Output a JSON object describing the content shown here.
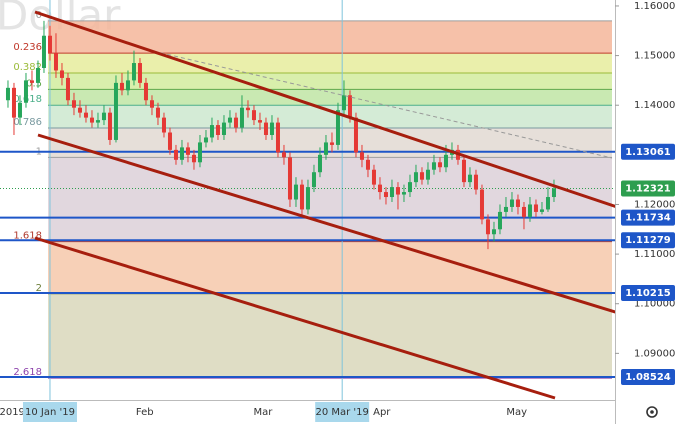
{
  "chart_data": {
    "type": "candlestick",
    "watermark": "Dollar",
    "up_color": "#26a65b",
    "down_color": "#e53935",
    "xlim": [
      -1.33,
      101.17
    ],
    "ylim": [
      1.0806,
      1.1612
    ],
    "xticks": [
      {
        "value": 0.7,
        "label": "2019"
      },
      {
        "value": 7,
        "label": "10 Jan '19",
        "highlight": true
      },
      {
        "value": 22.8,
        "label": "Feb"
      },
      {
        "value": 42.5,
        "label": "Mar"
      },
      {
        "value": 55.7,
        "label": "20 Mar '19",
        "highlight": true
      },
      {
        "value": 62.3,
        "label": "Apr"
      },
      {
        "value": 84.8,
        "label": "May"
      }
    ],
    "yticks": [
      {
        "value": 1.16,
        "label": "1.16000"
      },
      {
        "value": 1.15,
        "label": "1.15000"
      },
      {
        "value": 1.14,
        "label": "1.14000"
      },
      {
        "value": 1.12,
        "label": "1.12000"
      },
      {
        "value": 1.11,
        "label": "1.11000"
      },
      {
        "value": 1.1,
        "label": "1.10000"
      },
      {
        "value": 1.09,
        "label": "1.09000"
      }
    ],
    "fib_levels": [
      {
        "level": 0,
        "price": 1.157,
        "color": "#f4b69a",
        "line": "#9e9e9e"
      },
      {
        "level": 0.236,
        "price": 1.1505,
        "color": "#e6ec9c",
        "line": "#c0392b"
      },
      {
        "level": 0.382,
        "price": 1.1465,
        "color": "#d2ec9e",
        "line": "#9bbb3a"
      },
      {
        "level": 0.5,
        "price": 1.1432,
        "color": "#bfe5a4",
        "line": "#5fa84a"
      },
      {
        "level": 0.618,
        "price": 1.14,
        "color": "#cde8cf",
        "line": "#4caf8a"
      },
      {
        "level": 0.786,
        "price": 1.1354,
        "color": "#e2d9d2",
        "line": "#7a9aa0"
      },
      {
        "level": 1,
        "price": 1.1295,
        "color": "#dcd0d8",
        "line": "#9e9e9e"
      },
      {
        "level": 1.618,
        "price": 1.1125,
        "color": "#f6c8aa",
        "line": "#b03a2e"
      },
      {
        "level": 2,
        "price": 1.102,
        "color": "#d9d7bb",
        "line": "#6e7f3a"
      },
      {
        "level": 2.618,
        "price": 1.085,
        "line": "#8e44ad"
      }
    ],
    "levels": [
      1.13061,
      1.11734,
      1.11279,
      1.10215,
      1.08524
    ],
    "level_color": "#1e56c8",
    "last_price": 1.12321,
    "last_color": "#2e9e4f",
    "open": [
      1.141,
      1.1435,
      1.1375,
      1.1405,
      1.145,
      1.1445,
      1.1475,
      1.154,
      1.1505,
      1.147,
      1.1455,
      1.141,
      1.1395,
      1.1385,
      1.1375,
      1.1365,
      1.137,
      1.1385,
      1.133,
      1.1445,
      1.143,
      1.145,
      1.1485,
      1.1445,
      1.141,
      1.1395,
      1.1375,
      1.1345,
      1.131,
      1.129,
      1.1315,
      1.13,
      1.1285,
      1.1325,
      1.1335,
      1.136,
      1.134,
      1.1365,
      1.1375,
      1.1355,
      1.1395,
      1.139,
      1.137,
      1.1365,
      1.134,
      1.1365,
      1.1305,
      1.1295,
      1.121,
      1.124,
      1.119,
      1.1235,
      1.1265,
      1.13,
      1.1325,
      1.132,
      1.139,
      1.142,
      1.1375,
      1.1305,
      1.129,
      1.127,
      1.124,
      1.1225,
      1.1215,
      1.1235,
      1.122,
      1.1225,
      1.1245,
      1.1265,
      1.125,
      1.127,
      1.1285,
      1.1275,
      1.13,
      1.131,
      1.129,
      1.1245,
      1.126,
      1.123,
      1.117,
      1.114,
      1.115,
      1.1185,
      1.1195,
      1.121,
      1.1195,
      1.1175,
      1.12,
      1.1185,
      1.119,
      1.1215
    ],
    "high": [
      1.145,
      1.1445,
      1.142,
      1.1465,
      1.147,
      1.149,
      1.157,
      1.156,
      1.1545,
      1.1485,
      1.1465,
      1.1425,
      1.141,
      1.14,
      1.139,
      1.1385,
      1.14,
      1.1395,
      1.146,
      1.1465,
      1.147,
      1.151,
      1.1495,
      1.1455,
      1.142,
      1.1405,
      1.1385,
      1.1355,
      1.132,
      1.133,
      1.1325,
      1.131,
      1.134,
      1.135,
      1.1375,
      1.137,
      1.138,
      1.139,
      1.1385,
      1.142,
      1.141,
      1.14,
      1.1385,
      1.1375,
      1.138,
      1.1375,
      1.132,
      1.1305,
      1.1255,
      1.125,
      1.125,
      1.128,
      1.1315,
      1.134,
      1.1345,
      1.1405,
      1.145,
      1.143,
      1.1385,
      1.132,
      1.13,
      1.128,
      1.1255,
      1.1235,
      1.125,
      1.1245,
      1.124,
      1.126,
      1.128,
      1.1275,
      1.1285,
      1.13,
      1.1295,
      1.132,
      1.1325,
      1.132,
      1.13,
      1.1275,
      1.127,
      1.124,
      1.118,
      1.1165,
      1.12,
      1.1215,
      1.1225,
      1.122,
      1.1205,
      1.1215,
      1.121,
      1.1205,
      1.1235,
      1.125
    ],
    "low": [
      1.1395,
      1.134,
      1.136,
      1.1395,
      1.143,
      1.1435,
      1.1465,
      1.149,
      1.1455,
      1.144,
      1.14,
      1.138,
      1.1375,
      1.1365,
      1.1355,
      1.1355,
      1.136,
      1.132,
      1.1325,
      1.142,
      1.142,
      1.144,
      1.1435,
      1.14,
      1.138,
      1.136,
      1.1335,
      1.13,
      1.128,
      1.128,
      1.1285,
      1.127,
      1.1275,
      1.1315,
      1.1325,
      1.133,
      1.133,
      1.1355,
      1.1345,
      1.1345,
      1.1375,
      1.136,
      1.135,
      1.133,
      1.133,
      1.1295,
      1.128,
      1.1195,
      1.1195,
      1.1175,
      1.118,
      1.1225,
      1.1255,
      1.129,
      1.1305,
      1.131,
      1.138,
      1.1365,
      1.1295,
      1.1275,
      1.1255,
      1.123,
      1.121,
      1.12,
      1.1205,
      1.119,
      1.1205,
      1.1215,
      1.1235,
      1.124,
      1.124,
      1.126,
      1.1265,
      1.1265,
      1.129,
      1.128,
      1.1235,
      1.1235,
      1.122,
      1.116,
      1.111,
      1.1125,
      1.114,
      1.1175,
      1.1185,
      1.118,
      1.115,
      1.1165,
      1.1175,
      1.118,
      1.1185,
      1.1205
    ],
    "close": [
      1.1435,
      1.1375,
      1.1405,
      1.145,
      1.1445,
      1.1475,
      1.154,
      1.1505,
      1.147,
      1.1455,
      1.141,
      1.1395,
      1.1385,
      1.1375,
      1.1365,
      1.137,
      1.1385,
      1.133,
      1.1445,
      1.143,
      1.145,
      1.1485,
      1.1445,
      1.141,
      1.1395,
      1.1375,
      1.1345,
      1.131,
      1.129,
      1.1315,
      1.13,
      1.1285,
      1.1325,
      1.1335,
      1.136,
      1.134,
      1.1365,
      1.1375,
      1.1355,
      1.1395,
      1.139,
      1.137,
      1.1365,
      1.134,
      1.1365,
      1.1305,
      1.1295,
      1.121,
      1.124,
      1.119,
      1.1235,
      1.1265,
      1.13,
      1.1325,
      1.132,
      1.139,
      1.142,
      1.1375,
      1.1305,
      1.129,
      1.127,
      1.124,
      1.1225,
      1.1215,
      1.1235,
      1.122,
      1.1225,
      1.1245,
      1.1265,
      1.125,
      1.127,
      1.1285,
      1.1275,
      1.13,
      1.131,
      1.129,
      1.1245,
      1.126,
      1.123,
      1.117,
      1.114,
      1.115,
      1.1185,
      1.1195,
      1.121,
      1.1195,
      1.1175,
      1.12,
      1.1185,
      1.119,
      1.1215,
      1.1232
    ]
  }
}
